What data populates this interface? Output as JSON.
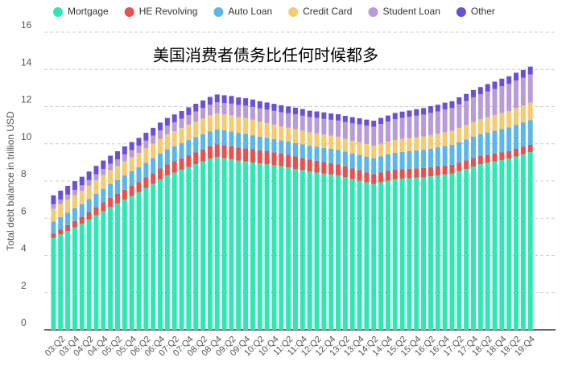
{
  "chart_data": {
    "type": "bar",
    "stacked": true,
    "title": "美国消费者债务比任何时候都多",
    "y_label": "Total debt balance in trillion USD",
    "categories": [
      null,
      "03:Q2",
      null,
      "03:Q4",
      null,
      "04:Q2",
      null,
      "04:Q4",
      null,
      "05:Q2",
      null,
      "05:Q4",
      null,
      "06:Q2",
      null,
      "06:Q4",
      null,
      "07:Q2",
      null,
      "07:Q4",
      null,
      "08:Q2",
      null,
      "08:Q4",
      null,
      "09:Q2",
      null,
      "09:Q4",
      null,
      "10:Q2",
      null,
      "10:Q4",
      null,
      "11:Q2",
      null,
      "11:Q4",
      null,
      "12:Q2",
      null,
      "12:Q4",
      null,
      "13:Q2",
      null,
      "13:Q4",
      null,
      "14:Q2",
      null,
      "14:Q4",
      null,
      "15:Q2",
      null,
      "15:Q4",
      null,
      "16:Q2",
      null,
      "16:Q4",
      null,
      "17:Q2",
      null,
      "17:Q4",
      null,
      "18:Q2",
      null,
      "18:Q4",
      null,
      "19:Q2",
      null,
      "19:Q4"
    ],
    "series": [
      {
        "name": "Mortgage",
        "color": "#2ee8b4",
        "values": [
          4.94,
          5.13,
          5.32,
          5.51,
          5.7,
          5.93,
          6.15,
          6.38,
          6.6,
          6.8,
          7.0,
          7.2,
          7.4,
          7.63,
          7.85,
          8.08,
          8.3,
          8.45,
          8.6,
          8.75,
          8.9,
          9.05,
          9.2,
          9.29,
          9.23,
          9.17,
          9.1,
          9.05,
          9.0,
          8.95,
          8.9,
          8.85,
          8.8,
          8.73,
          8.65,
          8.58,
          8.5,
          8.45,
          8.4,
          8.35,
          8.3,
          8.2,
          8.1,
          8.02,
          7.93,
          7.84,
          7.93,
          8.02,
          8.1,
          8.13,
          8.15,
          8.18,
          8.2,
          8.25,
          8.3,
          8.35,
          8.4,
          8.53,
          8.65,
          8.78,
          8.9,
          8.98,
          9.05,
          9.13,
          9.2,
          9.32,
          9.44,
          9.56
        ]
      },
      {
        "name": "HE Revolving",
        "color": "#e5524f",
        "values": [
          0.24,
          0.27,
          0.31,
          0.34,
          0.37,
          0.4,
          0.44,
          0.47,
          0.5,
          0.51,
          0.53,
          0.54,
          0.55,
          0.56,
          0.57,
          0.59,
          0.6,
          0.61,
          0.62,
          0.63,
          0.64,
          0.65,
          0.66,
          0.68,
          0.69,
          0.7,
          0.7,
          0.71,
          0.71,
          0.7,
          0.7,
          0.69,
          0.68,
          0.68,
          0.67,
          0.66,
          0.65,
          0.64,
          0.62,
          0.61,
          0.6,
          0.58,
          0.57,
          0.56,
          0.54,
          0.53,
          0.53,
          0.52,
          0.52,
          0.51,
          0.51,
          0.5,
          0.5,
          0.49,
          0.48,
          0.48,
          0.47,
          0.46,
          0.46,
          0.45,
          0.44,
          0.43,
          0.43,
          0.42,
          0.41,
          0.41,
          0.4,
          0.39
        ]
      },
      {
        "name": "Auto Loan",
        "color": "#5db6ea",
        "values": [
          0.64,
          0.65,
          0.67,
          0.68,
          0.69,
          0.7,
          0.72,
          0.73,
          0.74,
          0.75,
          0.77,
          0.78,
          0.79,
          0.79,
          0.8,
          0.8,
          0.8,
          0.81,
          0.81,
          0.82,
          0.82,
          0.81,
          0.81,
          0.8,
          0.8,
          0.8,
          0.79,
          0.77,
          0.75,
          0.73,
          0.72,
          0.71,
          0.7,
          0.71,
          0.72,
          0.73,
          0.74,
          0.75,
          0.76,
          0.77,
          0.78,
          0.8,
          0.81,
          0.83,
          0.84,
          0.86,
          0.87,
          0.89,
          0.9,
          0.92,
          0.94,
          0.96,
          0.98,
          1.0,
          1.03,
          1.05,
          1.07,
          1.1,
          1.12,
          1.15,
          1.17,
          1.2,
          1.22,
          1.25,
          1.27,
          1.29,
          1.31,
          1.33
        ]
      },
      {
        "name": "Credit Card",
        "color": "#f5ca70",
        "values": [
          0.69,
          0.7,
          0.7,
          0.71,
          0.72,
          0.72,
          0.73,
          0.74,
          0.74,
          0.75,
          0.76,
          0.76,
          0.77,
          0.78,
          0.79,
          0.8,
          0.81,
          0.81,
          0.82,
          0.83,
          0.84,
          0.85,
          0.86,
          0.87,
          0.86,
          0.86,
          0.85,
          0.85,
          0.84,
          0.82,
          0.8,
          0.78,
          0.76,
          0.75,
          0.75,
          0.74,
          0.73,
          0.72,
          0.72,
          0.71,
          0.7,
          0.69,
          0.69,
          0.68,
          0.68,
          0.67,
          0.68,
          0.68,
          0.69,
          0.7,
          0.71,
          0.71,
          0.72,
          0.73,
          0.73,
          0.74,
          0.75,
          0.77,
          0.78,
          0.8,
          0.81,
          0.83,
          0.84,
          0.86,
          0.88,
          0.9,
          0.91,
          0.93
        ]
      },
      {
        "name": "Student Loan",
        "color": "#b89cd8",
        "values": [
          0.24,
          0.25,
          0.27,
          0.28,
          0.29,
          0.3,
          0.32,
          0.33,
          0.34,
          0.35,
          0.37,
          0.38,
          0.39,
          0.41,
          0.43,
          0.45,
          0.46,
          0.48,
          0.5,
          0.52,
          0.54,
          0.56,
          0.57,
          0.59,
          0.61,
          0.63,
          0.65,
          0.67,
          0.69,
          0.7,
          0.72,
          0.74,
          0.76,
          0.77,
          0.79,
          0.8,
          0.81,
          0.83,
          0.84,
          0.85,
          0.87,
          0.9,
          0.93,
          0.96,
          0.99,
          1.02,
          1.05,
          1.08,
          1.11,
          1.13,
          1.14,
          1.16,
          1.17,
          1.19,
          1.2,
          1.22,
          1.23,
          1.26,
          1.29,
          1.32,
          1.34,
          1.37,
          1.4,
          1.43,
          1.46,
          1.48,
          1.49,
          1.51
        ]
      },
      {
        "name": "Other",
        "color": "#6a50d8",
        "values": [
          0.48,
          0.48,
          0.47,
          0.47,
          0.46,
          0.46,
          0.45,
          0.45,
          0.44,
          0.44,
          0.43,
          0.43,
          0.42,
          0.42,
          0.42,
          0.42,
          0.42,
          0.42,
          0.41,
          0.41,
          0.41,
          0.41,
          0.42,
          0.42,
          0.42,
          0.41,
          0.4,
          0.4,
          0.39,
          0.39,
          0.38,
          0.38,
          0.37,
          0.37,
          0.36,
          0.36,
          0.35,
          0.35,
          0.35,
          0.34,
          0.34,
          0.33,
          0.33,
          0.32,
          0.32,
          0.32,
          0.33,
          0.33,
          0.34,
          0.34,
          0.34,
          0.35,
          0.35,
          0.36,
          0.36,
          0.37,
          0.37,
          0.38,
          0.38,
          0.39,
          0.39,
          0.4,
          0.4,
          0.41,
          0.41,
          0.42,
          0.42,
          0.43
        ]
      }
    ],
    "ylim": [
      0,
      16
    ],
    "yticks": [
      0,
      2,
      4,
      6,
      8,
      10,
      12,
      14,
      16
    ],
    "grid": true,
    "legend": "top"
  }
}
